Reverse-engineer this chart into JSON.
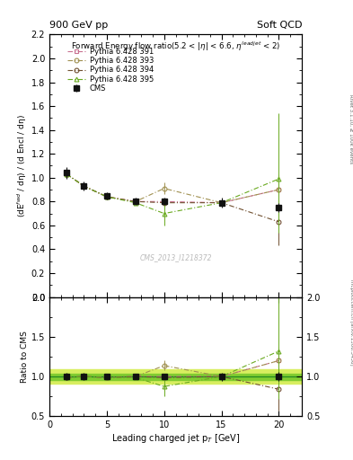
{
  "title_top_left": "900 GeV pp",
  "title_top_right": "Soft QCD",
  "plot_title": "Forward Energy flow ratio(5.2 < |η| < 6.6, η$^{leadjet}$ < 2)",
  "xlabel": "Leading charged jet p$_{T}$ [GeV]",
  "ylabel_main": "(dE$^{fwd}$ / dη) / (d Encl / dη)",
  "ylabel_ratio": "Ratio to CMS",
  "watermark": "CMS_2013_I1218372",
  "right_label_top": "Rivet 3.1.10, ≥ 100k events",
  "right_label_bottom": "mcplots.cern.ch [arXiv:1306.3436]",
  "cms_x": [
    1.5,
    3.0,
    5.0,
    7.5,
    10.0,
    15.0,
    20.0
  ],
  "cms_y": [
    1.04,
    0.93,
    0.85,
    0.8,
    0.8,
    0.79,
    0.75
  ],
  "cms_yerr": [
    0.05,
    0.04,
    0.03,
    0.03,
    0.03,
    0.04,
    0.04
  ],
  "p391_x": [
    1.5,
    3.0,
    5.0,
    7.5,
    10.0,
    15.0,
    20.0
  ],
  "p391_y": [
    1.03,
    0.93,
    0.84,
    0.8,
    0.8,
    0.79,
    0.9
  ],
  "p391_yerr_lo": [
    0.01,
    0.01,
    0.01,
    0.01,
    0.01,
    0.01,
    0.01
  ],
  "p391_yerr_hi": [
    0.01,
    0.01,
    0.01,
    0.01,
    0.01,
    0.01,
    0.01
  ],
  "p393_x": [
    1.5,
    3.0,
    5.0,
    7.5,
    10.0,
    15.0,
    20.0
  ],
  "p393_y": [
    1.03,
    0.93,
    0.84,
    0.8,
    0.91,
    0.79,
    0.9
  ],
  "p393_yerr_lo": [
    0.01,
    0.01,
    0.01,
    0.01,
    0.05,
    0.01,
    0.01
  ],
  "p393_yerr_hi": [
    0.01,
    0.01,
    0.01,
    0.01,
    0.05,
    0.01,
    0.01
  ],
  "p394_x": [
    1.5,
    3.0,
    5.0,
    7.5,
    10.0,
    15.0,
    20.0
  ],
  "p394_y": [
    1.03,
    0.93,
    0.84,
    0.8,
    0.79,
    0.79,
    0.63
  ],
  "p394_yerr_lo": [
    0.01,
    0.01,
    0.01,
    0.01,
    0.01,
    0.01,
    0.2
  ],
  "p394_yerr_hi": [
    0.01,
    0.01,
    0.01,
    0.01,
    0.01,
    0.01,
    0.4
  ],
  "p395_x": [
    1.5,
    3.0,
    5.0,
    7.5,
    10.0,
    15.0,
    20.0
  ],
  "p395_y": [
    1.03,
    0.93,
    0.84,
    0.79,
    0.7,
    0.79,
    0.99
  ],
  "p395_yerr_lo": [
    0.01,
    0.01,
    0.01,
    0.02,
    0.1,
    0.01,
    0.45
  ],
  "p395_yerr_hi": [
    0.01,
    0.01,
    0.01,
    0.02,
    0.1,
    0.01,
    0.55
  ],
  "color_391": "#c87090",
  "color_393": "#a09050",
  "color_394": "#705030",
  "color_395": "#6aaa20",
  "color_cms": "#111111",
  "ylim_main": [
    0.0,
    2.2
  ],
  "ylim_ratio": [
    0.5,
    2.0
  ],
  "xlim": [
    0,
    22
  ],
  "xticks": [
    0,
    5,
    10,
    15,
    20
  ],
  "yticks_main": [
    0.0,
    0.2,
    0.4,
    0.6,
    0.8,
    1.0,
    1.2,
    1.4,
    1.6,
    1.8,
    2.0,
    2.2
  ],
  "yticks_ratio": [
    0.5,
    1.0,
    1.5,
    2.0
  ],
  "band_inner_color": "#80cc30",
  "band_outer_color": "#d8ee60",
  "band_inner_half": 0.04,
  "band_outer_half": 0.09
}
